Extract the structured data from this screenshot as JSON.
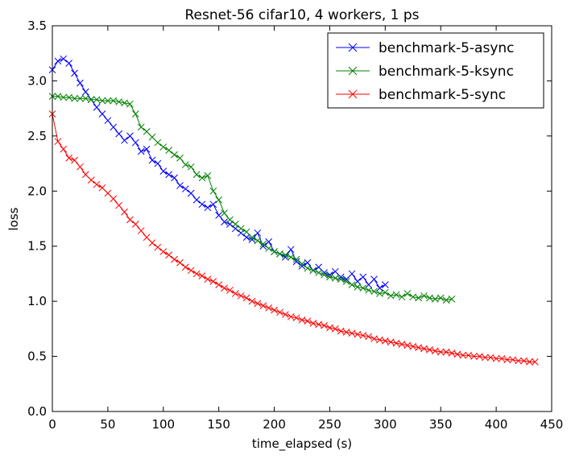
{
  "chart_data": {
    "type": "line",
    "title": "Resnet-56 cifar10, 4 workers, 1 ps",
    "xlabel": "time_elapsed (s)",
    "ylabel": "loss",
    "xlim": [
      0,
      450
    ],
    "ylim": [
      0.0,
      3.5
    ],
    "xticks": [
      0,
      50,
      100,
      150,
      200,
      250,
      300,
      350,
      400,
      450
    ],
    "xtick_labels": [
      "0",
      "50",
      "100",
      "150",
      "200",
      "250",
      "300",
      "350",
      "400",
      "450"
    ],
    "yticks": [
      0.0,
      0.5,
      1.0,
      1.5,
      2.0,
      2.5,
      3.0,
      3.5
    ],
    "ytick_labels": [
      "0.0",
      "0.5",
      "1.0",
      "1.5",
      "2.0",
      "2.5",
      "3.0",
      "3.5"
    ],
    "grid": false,
    "legend_position": "top-right",
    "marker": "x",
    "series": [
      {
        "name": "benchmark-5-async",
        "color": "#0000ff",
        "x": [
          0,
          5,
          10,
          15,
          20,
          25,
          30,
          35,
          40,
          45,
          50,
          55,
          60,
          65,
          70,
          75,
          80,
          85,
          90,
          95,
          100,
          105,
          110,
          115,
          120,
          125,
          130,
          135,
          140,
          145,
          150,
          155,
          160,
          165,
          170,
          175,
          180,
          185,
          190,
          195,
          200,
          205,
          210,
          215,
          220,
          225,
          230,
          235,
          240,
          245,
          250,
          255,
          260,
          265,
          270,
          275,
          280,
          285,
          290,
          295,
          300
        ],
        "y": [
          3.1,
          3.18,
          3.2,
          3.16,
          3.07,
          2.98,
          2.9,
          2.83,
          2.76,
          2.7,
          2.64,
          2.58,
          2.52,
          2.46,
          2.5,
          2.44,
          2.36,
          2.38,
          2.28,
          2.25,
          2.18,
          2.15,
          2.12,
          2.05,
          2.02,
          1.98,
          1.92,
          1.88,
          1.85,
          1.88,
          1.78,
          1.72,
          1.7,
          1.66,
          1.62,
          1.58,
          1.56,
          1.62,
          1.5,
          1.54,
          1.45,
          1.43,
          1.4,
          1.47,
          1.36,
          1.32,
          1.35,
          1.28,
          1.31,
          1.26,
          1.24,
          1.27,
          1.22,
          1.2,
          1.25,
          1.18,
          1.22,
          1.15,
          1.2,
          1.12,
          1.15
        ]
      },
      {
        "name": "benchmark-5-ksync",
        "color": "#008000",
        "x": [
          0,
          5,
          10,
          15,
          20,
          25,
          30,
          35,
          40,
          45,
          50,
          55,
          60,
          65,
          70,
          75,
          80,
          85,
          90,
          95,
          100,
          105,
          110,
          115,
          120,
          125,
          130,
          135,
          140,
          145,
          150,
          155,
          160,
          165,
          170,
          175,
          180,
          185,
          190,
          195,
          200,
          205,
          210,
          215,
          220,
          225,
          230,
          235,
          240,
          245,
          250,
          255,
          260,
          265,
          270,
          275,
          280,
          285,
          290,
          295,
          300,
          305,
          310,
          315,
          320,
          325,
          330,
          335,
          340,
          345,
          350,
          355,
          360
        ],
        "y": [
          2.86,
          2.86,
          2.85,
          2.85,
          2.84,
          2.84,
          2.84,
          2.83,
          2.83,
          2.82,
          2.82,
          2.82,
          2.81,
          2.8,
          2.79,
          2.7,
          2.58,
          2.54,
          2.49,
          2.44,
          2.4,
          2.37,
          2.33,
          2.3,
          2.24,
          2.22,
          2.15,
          2.12,
          2.14,
          2.0,
          1.92,
          1.8,
          1.74,
          1.7,
          1.66,
          1.63,
          1.58,
          1.55,
          1.52,
          1.48,
          1.45,
          1.43,
          1.42,
          1.4,
          1.38,
          1.34,
          1.3,
          1.28,
          1.26,
          1.24,
          1.22,
          1.21,
          1.2,
          1.18,
          1.15,
          1.13,
          1.12,
          1.1,
          1.09,
          1.07,
          1.08,
          1.05,
          1.06,
          1.04,
          1.07,
          1.04,
          1.03,
          1.05,
          1.03,
          1.02,
          1.03,
          1.01,
          1.02
        ]
      },
      {
        "name": "benchmark-5-sync",
        "color": "#ff0000",
        "x": [
          0,
          5,
          10,
          15,
          20,
          25,
          30,
          35,
          40,
          45,
          50,
          55,
          60,
          65,
          70,
          75,
          80,
          85,
          90,
          95,
          100,
          105,
          110,
          115,
          120,
          125,
          130,
          135,
          140,
          145,
          150,
          155,
          160,
          165,
          170,
          175,
          180,
          185,
          190,
          195,
          200,
          205,
          210,
          215,
          220,
          225,
          230,
          235,
          240,
          245,
          250,
          255,
          260,
          265,
          270,
          275,
          280,
          285,
          290,
          295,
          300,
          305,
          310,
          315,
          320,
          325,
          330,
          335,
          340,
          345,
          350,
          355,
          360,
          365,
          370,
          375,
          380,
          385,
          390,
          395,
          400,
          405,
          410,
          415,
          420,
          425,
          430,
          435
        ],
        "y": [
          2.7,
          2.45,
          2.38,
          2.3,
          2.28,
          2.22,
          2.15,
          2.1,
          2.06,
          2.03,
          1.98,
          1.93,
          1.87,
          1.81,
          1.74,
          1.7,
          1.64,
          1.58,
          1.53,
          1.49,
          1.45,
          1.42,
          1.38,
          1.35,
          1.31,
          1.28,
          1.25,
          1.23,
          1.2,
          1.18,
          1.15,
          1.12,
          1.1,
          1.07,
          1.05,
          1.03,
          1.0,
          0.98,
          0.96,
          0.94,
          0.92,
          0.9,
          0.88,
          0.86,
          0.85,
          0.83,
          0.82,
          0.8,
          0.79,
          0.78,
          0.76,
          0.75,
          0.73,
          0.72,
          0.71,
          0.7,
          0.69,
          0.68,
          0.66,
          0.65,
          0.64,
          0.63,
          0.62,
          0.61,
          0.6,
          0.59,
          0.58,
          0.57,
          0.56,
          0.55,
          0.54,
          0.54,
          0.53,
          0.52,
          0.51,
          0.51,
          0.5,
          0.5,
          0.49,
          0.49,
          0.48,
          0.48,
          0.47,
          0.47,
          0.46,
          0.46,
          0.45,
          0.45
        ]
      }
    ]
  }
}
